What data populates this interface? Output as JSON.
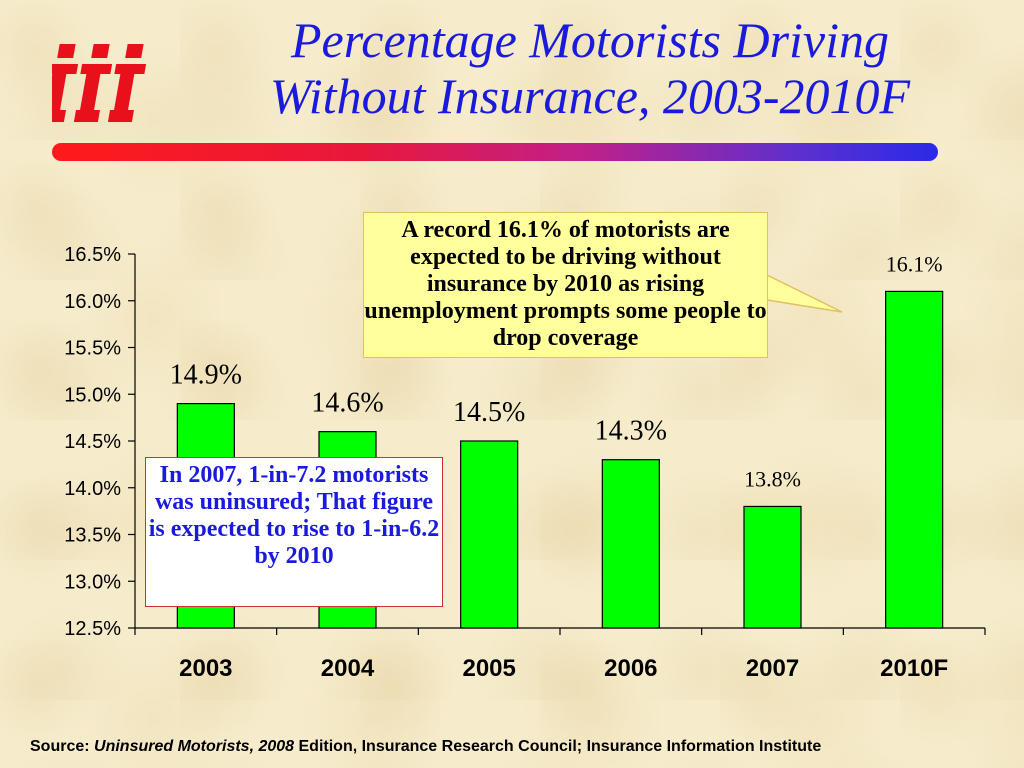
{
  "title_line1": "Percentage Motorists Driving",
  "title_line2": "Without Insurance, 2003-2010F",
  "logo_text": "iii",
  "callouts": {
    "record": "A record 16.1% of motorists are expected to be driving without insurance by 2010 as rising unemployment prompts some people to drop coverage",
    "ratio": "In 2007, 1-in-7.2 motorists was uninsured; That figure is expected to rise to 1-in-6.2 by 2010"
  },
  "source": {
    "prefix": "Source: ",
    "publication": "Uninsured Motorists, 2008",
    "suffix": " Edition, Insurance Research Council; Insurance Information Institute"
  },
  "colors": {
    "bar": "#00ff00",
    "title": "#1a1adc",
    "logo": "#e8101a"
  },
  "chart_data": {
    "type": "bar",
    "categories": [
      "2003",
      "2004",
      "2005",
      "2006",
      "2007",
      "2010F"
    ],
    "values": [
      14.9,
      14.6,
      14.5,
      14.3,
      13.8,
      16.1
    ],
    "data_labels": [
      "14.9%",
      "14.6%",
      "14.5%",
      "14.3%",
      "13.8%",
      "16.1%"
    ],
    "y_ticks": [
      "12.5%",
      "13.0%",
      "13.5%",
      "14.0%",
      "14.5%",
      "15.0%",
      "15.5%",
      "16.0%",
      "16.5%"
    ],
    "y_tick_values": [
      12.5,
      13.0,
      13.5,
      14.0,
      14.5,
      15.0,
      15.5,
      16.0,
      16.5
    ],
    "ylim": [
      12.5,
      16.5
    ],
    "grid": false
  }
}
